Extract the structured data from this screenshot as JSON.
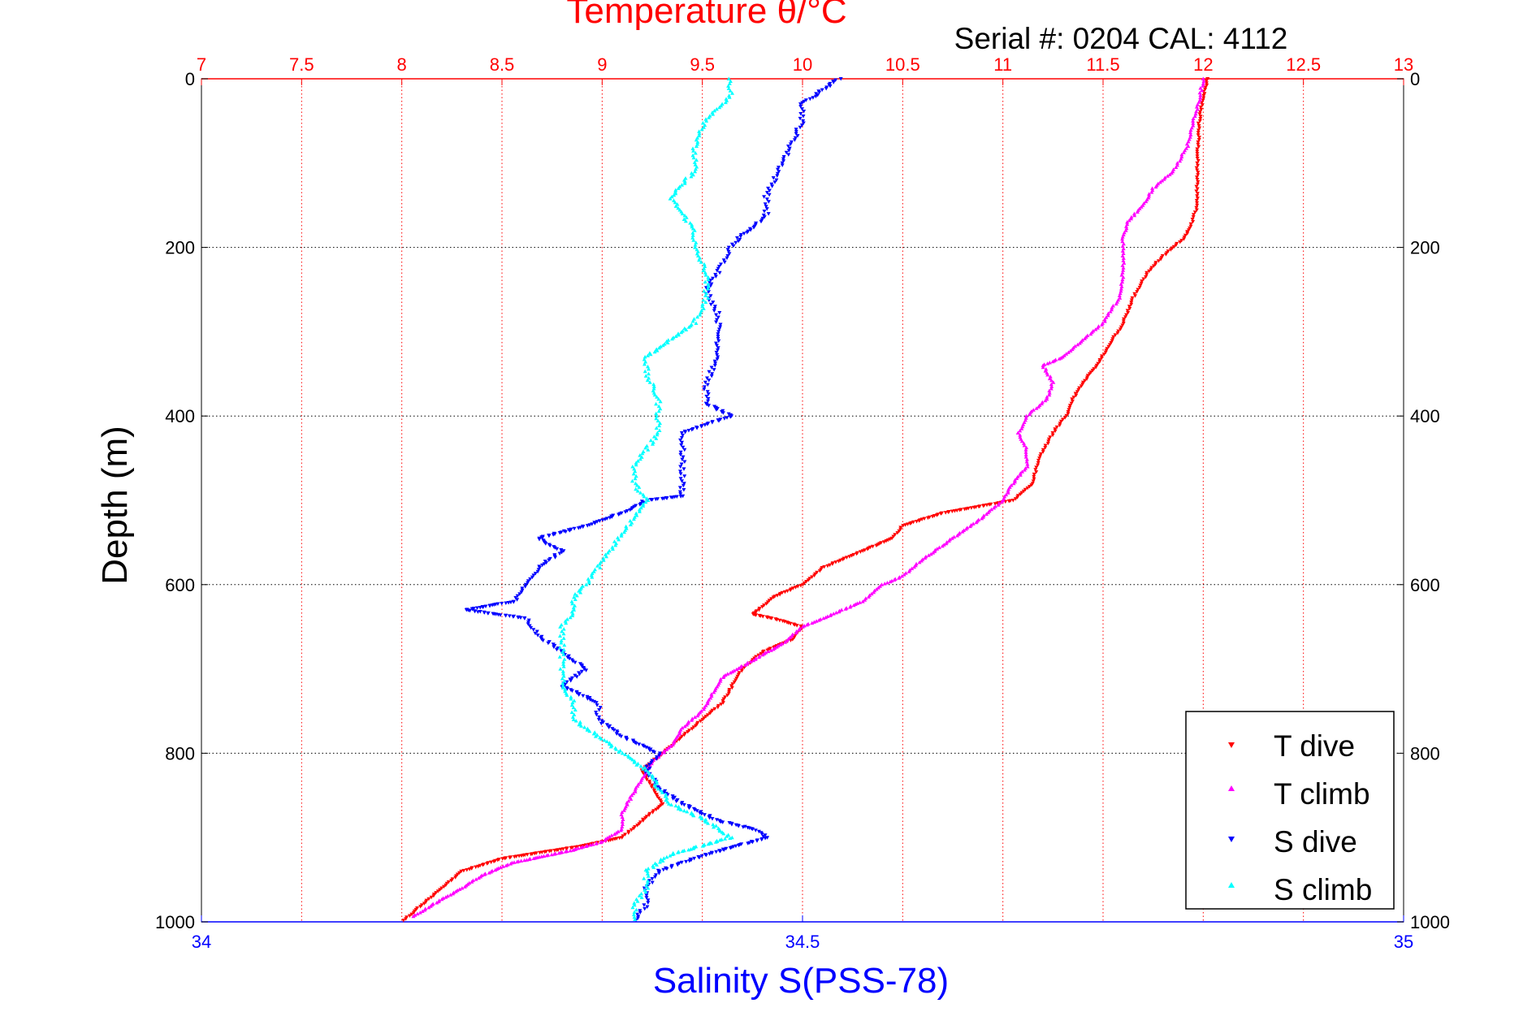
{
  "chart_data": {
    "type": "scatter",
    "title": "Temperature θ/°C",
    "subtitle": "Serial #: 0204  CAL: 4112",
    "ylabel": "Depth (m)",
    "xlabel": "Salinity S(PSS-78)",
    "temperature_axis": {
      "range": [
        7,
        13
      ],
      "ticks": [
        "7",
        "7.5",
        "8",
        "8.5",
        "9",
        "9.5",
        "10",
        "10.5",
        "11",
        "11.5",
        "12",
        "12.5",
        "13"
      ],
      "color": "#ff0000"
    },
    "salinity_axis": {
      "range": [
        34,
        35
      ],
      "ticks": [
        "34",
        "34.5",
        "35"
      ],
      "color": "#0000ff"
    },
    "depth_axis": {
      "range": [
        0,
        1000
      ],
      "reversed": true,
      "ticks": [
        "0",
        "200",
        "400",
        "600",
        "800",
        "1000"
      ]
    },
    "grid": true,
    "legend_position": "bottom-right",
    "series": [
      {
        "name": "T dive",
        "color": "#ff0000",
        "marker": "triangle-down",
        "axis": "temperature",
        "points": [
          [
            0,
            12.02
          ],
          [
            20,
            12.0
          ],
          [
            50,
            11.98
          ],
          [
            100,
            11.97
          ],
          [
            150,
            11.97
          ],
          [
            175,
            11.94
          ],
          [
            190,
            11.9
          ],
          [
            210,
            11.8
          ],
          [
            230,
            11.72
          ],
          [
            260,
            11.65
          ],
          [
            290,
            11.6
          ],
          [
            320,
            11.52
          ],
          [
            340,
            11.47
          ],
          [
            360,
            11.4
          ],
          [
            380,
            11.35
          ],
          [
            395,
            11.33
          ],
          [
            420,
            11.25
          ],
          [
            450,
            11.18
          ],
          [
            480,
            11.15
          ],
          [
            500,
            11.05
          ],
          [
            515,
            10.7
          ],
          [
            530,
            10.5
          ],
          [
            545,
            10.45
          ],
          [
            560,
            10.3
          ],
          [
            580,
            10.1
          ],
          [
            600,
            10.0
          ],
          [
            615,
            9.85
          ],
          [
            630,
            9.78
          ],
          [
            635,
            9.75
          ],
          [
            640,
            9.85
          ],
          [
            650,
            10.0
          ],
          [
            665,
            9.95
          ],
          [
            680,
            9.8
          ],
          [
            700,
            9.7
          ],
          [
            720,
            9.65
          ],
          [
            740,
            9.6
          ],
          [
            760,
            9.5
          ],
          [
            780,
            9.4
          ],
          [
            800,
            9.3
          ],
          [
            820,
            9.2
          ],
          [
            840,
            9.25
          ],
          [
            860,
            9.3
          ],
          [
            870,
            9.25
          ],
          [
            880,
            9.2
          ],
          [
            900,
            9.1
          ],
          [
            910,
            8.9
          ],
          [
            925,
            8.5
          ],
          [
            940,
            8.3
          ],
          [
            960,
            8.2
          ],
          [
            980,
            8.1
          ],
          [
            1000,
            8.0
          ]
        ]
      },
      {
        "name": "T climb",
        "color": "#ff00ff",
        "marker": "triangle-up",
        "axis": "temperature",
        "points": [
          [
            0,
            12.0
          ],
          [
            25,
            11.98
          ],
          [
            50,
            11.95
          ],
          [
            80,
            11.92
          ],
          [
            110,
            11.85
          ],
          [
            130,
            11.75
          ],
          [
            150,
            11.7
          ],
          [
            170,
            11.62
          ],
          [
            190,
            11.6
          ],
          [
            210,
            11.6
          ],
          [
            230,
            11.6
          ],
          [
            260,
            11.58
          ],
          [
            290,
            11.5
          ],
          [
            310,
            11.4
          ],
          [
            330,
            11.3
          ],
          [
            340,
            11.2
          ],
          [
            360,
            11.25
          ],
          [
            380,
            11.22
          ],
          [
            400,
            11.12
          ],
          [
            420,
            11.08
          ],
          [
            440,
            11.12
          ],
          [
            460,
            11.12
          ],
          [
            480,
            11.05
          ],
          [
            500,
            11.0
          ],
          [
            520,
            10.9
          ],
          [
            545,
            10.75
          ],
          [
            570,
            10.6
          ],
          [
            590,
            10.5
          ],
          [
            600,
            10.4
          ],
          [
            620,
            10.3
          ],
          [
            630,
            10.2
          ],
          [
            650,
            10.0
          ],
          [
            670,
            9.9
          ],
          [
            690,
            9.75
          ],
          [
            710,
            9.6
          ],
          [
            730,
            9.55
          ],
          [
            750,
            9.5
          ],
          [
            770,
            9.4
          ],
          [
            790,
            9.35
          ],
          [
            810,
            9.25
          ],
          [
            830,
            9.2
          ],
          [
            850,
            9.15
          ],
          [
            870,
            9.1
          ],
          [
            890,
            9.1
          ],
          [
            905,
            9.0
          ],
          [
            915,
            8.85
          ],
          [
            930,
            8.55
          ],
          [
            945,
            8.4
          ],
          [
            960,
            8.3
          ],
          [
            980,
            8.15
          ],
          [
            995,
            8.05
          ]
        ]
      },
      {
        "name": "S dive",
        "color": "#0000ff",
        "marker": "triangle-down",
        "axis": "salinity",
        "points": [
          [
            0,
            34.53
          ],
          [
            10,
            34.52
          ],
          [
            30,
            34.5
          ],
          [
            50,
            34.5
          ],
          [
            80,
            34.49
          ],
          [
            110,
            34.48
          ],
          [
            140,
            34.47
          ],
          [
            160,
            34.47
          ],
          [
            175,
            34.46
          ],
          [
            185,
            34.45
          ],
          [
            200,
            34.44
          ],
          [
            230,
            34.43
          ],
          [
            250,
            34.42
          ],
          [
            280,
            34.43
          ],
          [
            300,
            34.43
          ],
          [
            330,
            34.43
          ],
          [
            360,
            34.42
          ],
          [
            385,
            34.42
          ],
          [
            400,
            34.44
          ],
          [
            420,
            34.4
          ],
          [
            440,
            34.4
          ],
          [
            460,
            34.4
          ],
          [
            480,
            34.4
          ],
          [
            495,
            34.4
          ],
          [
            500,
            34.37
          ],
          [
            515,
            34.35
          ],
          [
            530,
            34.32
          ],
          [
            545,
            34.28
          ],
          [
            560,
            34.3
          ],
          [
            580,
            34.28
          ],
          [
            600,
            34.27
          ],
          [
            620,
            34.26
          ],
          [
            630,
            34.22
          ],
          [
            640,
            34.27
          ],
          [
            660,
            34.28
          ],
          [
            680,
            34.3
          ],
          [
            700,
            34.32
          ],
          [
            720,
            34.3
          ],
          [
            740,
            34.33
          ],
          [
            760,
            34.33
          ],
          [
            780,
            34.35
          ],
          [
            800,
            34.38
          ],
          [
            820,
            34.37
          ],
          [
            840,
            34.38
          ],
          [
            860,
            34.4
          ],
          [
            880,
            34.43
          ],
          [
            890,
            34.46
          ],
          [
            900,
            34.47
          ],
          [
            920,
            34.42
          ],
          [
            940,
            34.38
          ],
          [
            960,
            34.37
          ],
          [
            980,
            34.37
          ],
          [
            1000,
            34.36
          ]
        ]
      },
      {
        "name": "S climb",
        "color": "#00ffff",
        "marker": "triangle-up",
        "axis": "salinity",
        "points": [
          [
            0,
            34.44
          ],
          [
            20,
            34.44
          ],
          [
            50,
            34.42
          ],
          [
            80,
            34.41
          ],
          [
            110,
            34.41
          ],
          [
            140,
            34.39
          ],
          [
            160,
            34.4
          ],
          [
            180,
            34.41
          ],
          [
            200,
            34.41
          ],
          [
            230,
            34.42
          ],
          [
            260,
            34.42
          ],
          [
            290,
            34.41
          ],
          [
            310,
            34.39
          ],
          [
            330,
            34.37
          ],
          [
            350,
            34.37
          ],
          [
            380,
            34.38
          ],
          [
            400,
            34.38
          ],
          [
            420,
            34.38
          ],
          [
            440,
            34.37
          ],
          [
            460,
            34.36
          ],
          [
            480,
            34.36
          ],
          [
            500,
            34.37
          ],
          [
            520,
            34.36
          ],
          [
            540,
            34.35
          ],
          [
            560,
            34.34
          ],
          [
            580,
            34.33
          ],
          [
            600,
            34.32
          ],
          [
            615,
            34.31
          ],
          [
            630,
            34.31
          ],
          [
            650,
            34.3
          ],
          [
            680,
            34.3
          ],
          [
            700,
            34.3
          ],
          [
            720,
            34.3
          ],
          [
            740,
            34.31
          ],
          [
            760,
            34.31
          ],
          [
            780,
            34.33
          ],
          [
            800,
            34.35
          ],
          [
            820,
            34.37
          ],
          [
            840,
            34.38
          ],
          [
            860,
            34.39
          ],
          [
            880,
            34.42
          ],
          [
            900,
            34.44
          ],
          [
            920,
            34.39
          ],
          [
            940,
            34.37
          ],
          [
            960,
            34.37
          ],
          [
            980,
            34.36
          ],
          [
            1000,
            34.36
          ]
        ]
      }
    ]
  }
}
